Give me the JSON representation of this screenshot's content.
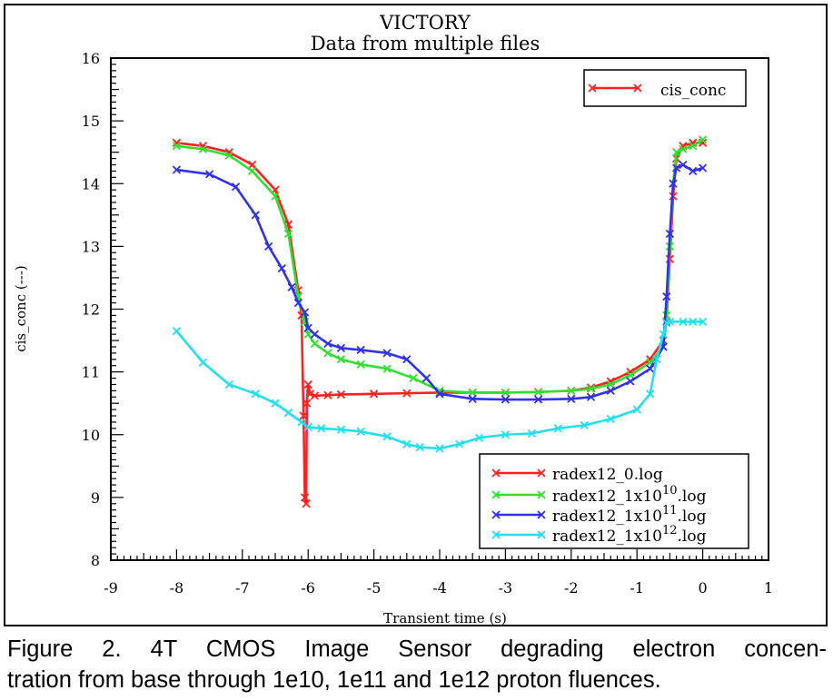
{
  "caption": {
    "line1": "Figure 2.  4T CMOS Image Sensor degrading electron concen-",
    "line2": "tration from base through 1e10, 1e11 and 1e12 proton fluences."
  },
  "chart_data": {
    "type": "line",
    "title": "VICTORY",
    "subtitle": "Data from multiple files",
    "xlabel": "Transient time (s)",
    "ylabel": "cis_conc (---)",
    "xlim": [
      -9,
      1
    ],
    "ylim": [
      8,
      16
    ],
    "xticks": [
      -9,
      -8,
      -7,
      -6,
      -5,
      -4,
      -3,
      -2,
      -1,
      0,
      1
    ],
    "yticks": [
      8,
      9,
      10,
      11,
      12,
      13,
      14,
      15,
      16
    ],
    "grid": false,
    "legend_top": {
      "position": "top-right",
      "entries": [
        {
          "label": "cis_conc",
          "color": "#ff2020"
        }
      ]
    },
    "legend_bottom": {
      "position": "bottom-right",
      "entries": [
        {
          "base": "radex12_0.log",
          "exp": "",
          "suffix": ""
        },
        {
          "base": "radex12_1x10",
          "exp": "10",
          "suffix": ".log"
        },
        {
          "base": "radex12_1x10",
          "exp": "11",
          "suffix": ".log"
        },
        {
          "base": "radex12_1x10",
          "exp": "12",
          "suffix": ".log"
        }
      ]
    },
    "series": [
      {
        "color": "#ff2020",
        "x": [
          -8.0,
          -7.6,
          -7.2,
          -6.85,
          -6.5,
          -6.3,
          -6.15,
          -6.1,
          -6.07,
          -6.05,
          -6.03,
          -6.02,
          -6.0,
          -5.97,
          -5.9,
          -5.7,
          -5.5,
          -5.0,
          -4.5,
          -4.0,
          -3.5,
          -3.0,
          -2.5,
          -2.0,
          -1.7,
          -1.4,
          -1.1,
          -0.8,
          -0.6,
          -0.55,
          -0.5,
          -0.45,
          -0.4,
          -0.3,
          -0.15,
          0.0
        ],
        "y": [
          14.65,
          14.6,
          14.5,
          14.3,
          13.9,
          13.35,
          12.3,
          11.9,
          10.3,
          9.0,
          8.9,
          10.5,
          10.8,
          10.65,
          10.62,
          10.63,
          10.64,
          10.65,
          10.66,
          10.67,
          10.67,
          10.67,
          10.68,
          10.7,
          10.75,
          10.85,
          11.0,
          11.2,
          11.5,
          11.8,
          12.8,
          13.8,
          14.4,
          14.6,
          14.65,
          14.65
        ]
      },
      {
        "color": "#30e030",
        "x": [
          -8.0,
          -7.6,
          -7.2,
          -6.85,
          -6.5,
          -6.3,
          -6.15,
          -6.05,
          -6.0,
          -5.9,
          -5.7,
          -5.5,
          -5.2,
          -4.8,
          -4.4,
          -4.0,
          -3.5,
          -3.0,
          -2.5,
          -2.0,
          -1.7,
          -1.4,
          -1.1,
          -0.8,
          -0.6,
          -0.55,
          -0.5,
          -0.45,
          -0.4,
          -0.3,
          -0.15,
          0.0
        ],
        "y": [
          14.6,
          14.55,
          14.45,
          14.2,
          13.8,
          13.2,
          12.2,
          11.8,
          11.6,
          11.45,
          11.3,
          11.2,
          11.12,
          11.05,
          10.9,
          10.7,
          10.67,
          10.67,
          10.68,
          10.7,
          10.73,
          10.8,
          10.95,
          11.15,
          11.4,
          11.9,
          13.0,
          14.0,
          14.5,
          14.55,
          14.6,
          14.7
        ]
      },
      {
        "color": "#3030f0",
        "x": [
          -8.0,
          -7.5,
          -7.1,
          -6.8,
          -6.6,
          -6.4,
          -6.25,
          -6.15,
          -6.05,
          -6.0,
          -5.9,
          -5.7,
          -5.5,
          -5.2,
          -4.8,
          -4.5,
          -4.2,
          -4.0,
          -3.5,
          -3.0,
          -2.5,
          -2.0,
          -1.7,
          -1.4,
          -1.1,
          -0.8,
          -0.6,
          -0.55,
          -0.5,
          -0.45,
          -0.4,
          -0.3,
          -0.15,
          0.0
        ],
        "y": [
          14.22,
          14.15,
          13.95,
          13.5,
          13.0,
          12.65,
          12.35,
          12.1,
          11.95,
          11.7,
          11.6,
          11.45,
          11.38,
          11.35,
          11.3,
          11.2,
          10.9,
          10.65,
          10.57,
          10.56,
          10.56,
          10.57,
          10.6,
          10.7,
          10.85,
          11.05,
          11.4,
          12.2,
          13.2,
          14.0,
          14.25,
          14.3,
          14.2,
          14.25
        ]
      },
      {
        "color": "#20e0f0",
        "x": [
          -8.0,
          -7.6,
          -7.2,
          -6.8,
          -6.5,
          -6.3,
          -6.1,
          -6.0,
          -5.8,
          -5.5,
          -5.2,
          -4.8,
          -4.5,
          -4.3,
          -4.0,
          -3.7,
          -3.4,
          -3.0,
          -2.6,
          -2.2,
          -1.8,
          -1.4,
          -1.0,
          -0.8,
          -0.7,
          -0.6,
          -0.55,
          -0.5,
          -0.3,
          -0.15,
          0.0
        ],
        "y": [
          11.65,
          11.15,
          10.8,
          10.65,
          10.5,
          10.35,
          10.2,
          10.12,
          10.1,
          10.08,
          10.05,
          9.97,
          9.85,
          9.8,
          9.78,
          9.85,
          9.95,
          10.0,
          10.02,
          10.1,
          10.15,
          10.25,
          10.4,
          10.65,
          11.2,
          11.6,
          11.78,
          11.8,
          11.8,
          11.8,
          11.8
        ]
      }
    ]
  }
}
